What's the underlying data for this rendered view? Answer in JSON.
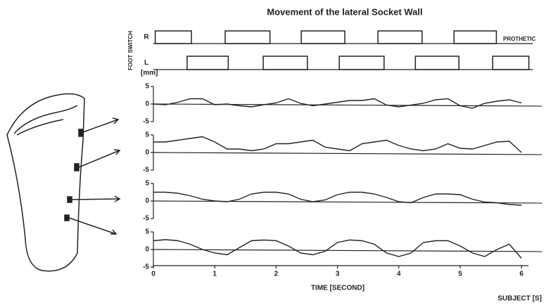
{
  "chart_data": {
    "type": "line",
    "title": "Movement of the lateral Socket Wall",
    "foot_switch": {
      "label": "FOOT SWITCH",
      "annotation": "PROTHETIC",
      "channels": [
        {
          "name": "R",
          "intervals": [
            [
              0.03,
              0.62
            ],
            [
              1.17,
              1.9
            ],
            [
              2.41,
              3.12
            ],
            [
              3.66,
              4.38
            ],
            [
              4.9,
              5.59
            ]
          ]
        },
        {
          "name": "L",
          "intervals": [
            [
              0.55,
              1.22
            ],
            [
              1.79,
              2.51
            ],
            [
              3.03,
              3.76
            ],
            [
              4.27,
              4.98
            ],
            [
              5.53,
              6.12
            ]
          ]
        }
      ]
    },
    "y_unit": "[mm]",
    "xlabel": "TIME [SECOND]",
    "footnote": "SUBJECT [S]",
    "xlim": [
      0,
      6.3
    ],
    "xticks": [
      0,
      1,
      2,
      3,
      4,
      5,
      6
    ],
    "x": [
      0,
      0.2,
      0.4,
      0.6,
      0.8,
      1,
      1.2,
      1.4,
      1.6,
      1.8,
      2,
      2.2,
      2.4,
      2.6,
      2.8,
      3,
      3.2,
      3.4,
      3.6,
      3.8,
      4,
      4.2,
      4.4,
      4.6,
      4.8,
      5,
      5.2,
      5.4,
      5.6,
      5.8,
      6
    ],
    "panels": [
      {
        "ylim": [
          -5,
          5
        ],
        "yticks": [
          5,
          0,
          -5
        ],
        "values": [
          0,
          -0.2,
          0.5,
          1.5,
          1.5,
          -0.2,
          0,
          -0.5,
          -0.8,
          -0.2,
          0.3,
          1.5,
          0.2,
          -0.5,
          0,
          0.5,
          1,
          1,
          1.5,
          -0.3,
          -0.8,
          -0.3,
          0.2,
          1.2,
          1.5,
          -0.5,
          -1.2,
          0.2,
          0.8,
          1.2,
          0.3
        ]
      },
      {
        "ylim": [
          -5,
          5
        ],
        "yticks": [
          5,
          0,
          -5
        ],
        "values": [
          3,
          3,
          3.5,
          4,
          4.5,
          3,
          1,
          1,
          0.5,
          1,
          2.5,
          2.5,
          3,
          3.5,
          1.5,
          1,
          0.5,
          2.5,
          3,
          3.5,
          2,
          1,
          0.5,
          1,
          2.5,
          1.2,
          1,
          2,
          3,
          3.2,
          0
        ]
      },
      {
        "ylim": [
          -5,
          5
        ],
        "yticks": [
          5,
          0,
          -5
        ],
        "values": [
          2.5,
          2.5,
          2.2,
          1.5,
          0.5,
          0,
          -0.2,
          0.5,
          2,
          2.5,
          2.5,
          2,
          0.5,
          -0.2,
          0.3,
          1.8,
          2.5,
          2.5,
          2,
          1,
          -0.2,
          -0.5,
          1,
          2,
          2,
          1.8,
          0.5,
          -0.3,
          -0.5,
          -1,
          -1.2
        ]
      },
      {
        "ylim": [
          -5,
          5
        ],
        "yticks": [
          5,
          0,
          -5
        ],
        "values": [
          2.5,
          2.8,
          2.5,
          1.5,
          0,
          -1,
          -1.5,
          0.5,
          2.5,
          2.7,
          2.5,
          1,
          -1,
          -1.5,
          -0.5,
          2,
          2.7,
          2.5,
          1.5,
          -1,
          -2,
          -1,
          2,
          2.5,
          2.5,
          1,
          -1,
          -2,
          0,
          1.5,
          -2.5
        ]
      }
    ]
  }
}
